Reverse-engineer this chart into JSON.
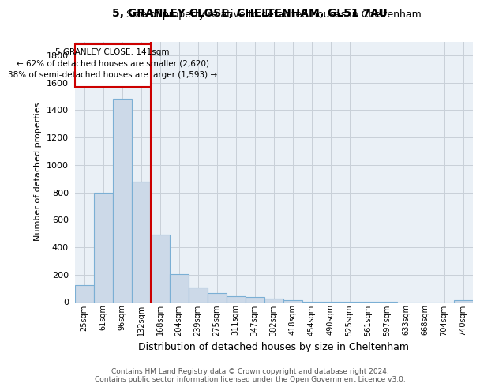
{
  "title": "5, GRANLEY CLOSE, CHELTENHAM, GL51 7AU",
  "subtitle": "Size of property relative to detached houses in Cheltenham",
  "xlabel": "Distribution of detached houses by size in Cheltenham",
  "ylabel": "Number of detached properties",
  "footer_line1": "Contains HM Land Registry data © Crown copyright and database right 2024.",
  "footer_line2": "Contains public sector information licensed under the Open Government Licence v3.0.",
  "bar_color": "#ccd9e8",
  "bar_edge_color": "#7bafd4",
  "grid_color": "#c8d0d8",
  "background_color": "#eaf0f6",
  "annotation_box_color": "#cc0000",
  "property_line_color": "#cc0000",
  "annotation_text_line1": "5 GRANLEY CLOSE: 141sqm",
  "annotation_text_line2": "← 62% of detached houses are smaller (2,620)",
  "annotation_text_line3": "38% of semi-detached houses are larger (1,593) →",
  "categories": [
    "25sqm",
    "61sqm",
    "96sqm",
    "132sqm",
    "168sqm",
    "204sqm",
    "239sqm",
    "275sqm",
    "311sqm",
    "347sqm",
    "382sqm",
    "418sqm",
    "454sqm",
    "490sqm",
    "525sqm",
    "561sqm",
    "597sqm",
    "633sqm",
    "668sqm",
    "704sqm",
    "740sqm"
  ],
  "values": [
    125,
    800,
    1480,
    880,
    490,
    205,
    105,
    65,
    42,
    35,
    28,
    15,
    5,
    2,
    2,
    2,
    2,
    0,
    0,
    0,
    15
  ],
  "ylim": [
    0,
    1900
  ],
  "yticks": [
    0,
    200,
    400,
    600,
    800,
    1000,
    1200,
    1400,
    1600,
    1800
  ],
  "property_bar_index": 3
}
